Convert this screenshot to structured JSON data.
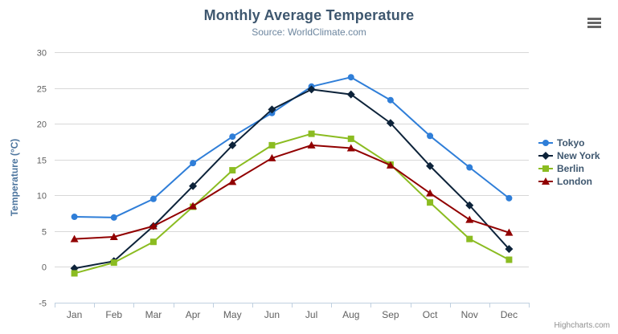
{
  "header": {
    "title": "Monthly Average Temperature",
    "subtitle": "Source: WorldClimate.com"
  },
  "icons": {
    "export_menu": "hamburger-icon"
  },
  "credits_label": "Highcharts.com",
  "chart_data": {
    "type": "line",
    "title": "Monthly Average Temperature",
    "subtitle": "Source: WorldClimate.com",
    "xlabel": "",
    "ylabel": "Temperature (°C)",
    "categories": [
      "Jan",
      "Feb",
      "Mar",
      "Apr",
      "May",
      "Jun",
      "Jul",
      "Aug",
      "Sep",
      "Oct",
      "Nov",
      "Dec"
    ],
    "series": [
      {
        "name": "Tokyo",
        "color": "#2f7ed8",
        "marker": "circle",
        "values": [
          7.0,
          6.9,
          9.5,
          14.5,
          18.2,
          21.5,
          25.2,
          26.5,
          23.3,
          18.3,
          13.9,
          9.6
        ]
      },
      {
        "name": "New York",
        "color": "#0d233a",
        "marker": "diamond",
        "values": [
          -0.2,
          0.8,
          5.7,
          11.3,
          17.0,
          22.0,
          24.8,
          24.1,
          20.1,
          14.1,
          8.6,
          2.5
        ]
      },
      {
        "name": "Berlin",
        "color": "#8bbc21",
        "marker": "square",
        "values": [
          -0.9,
          0.6,
          3.5,
          8.4,
          13.5,
          17.0,
          18.6,
          17.9,
          14.3,
          9.0,
          3.9,
          1.0
        ]
      },
      {
        "name": "London",
        "color": "#910000",
        "marker": "triangle",
        "values": [
          3.9,
          4.2,
          5.7,
          8.5,
          11.9,
          15.2,
          17.0,
          16.6,
          14.2,
          10.3,
          6.6,
          4.8
        ]
      }
    ],
    "ylim": [
      -5,
      30
    ],
    "ytick_step": 5,
    "grid": true,
    "legend_position": "right",
    "colors": {
      "gridline": "#D8D8D8",
      "axis_line": "#C0D0E0",
      "tick": "#C0D0E0",
      "axis_label": "#606060"
    }
  }
}
